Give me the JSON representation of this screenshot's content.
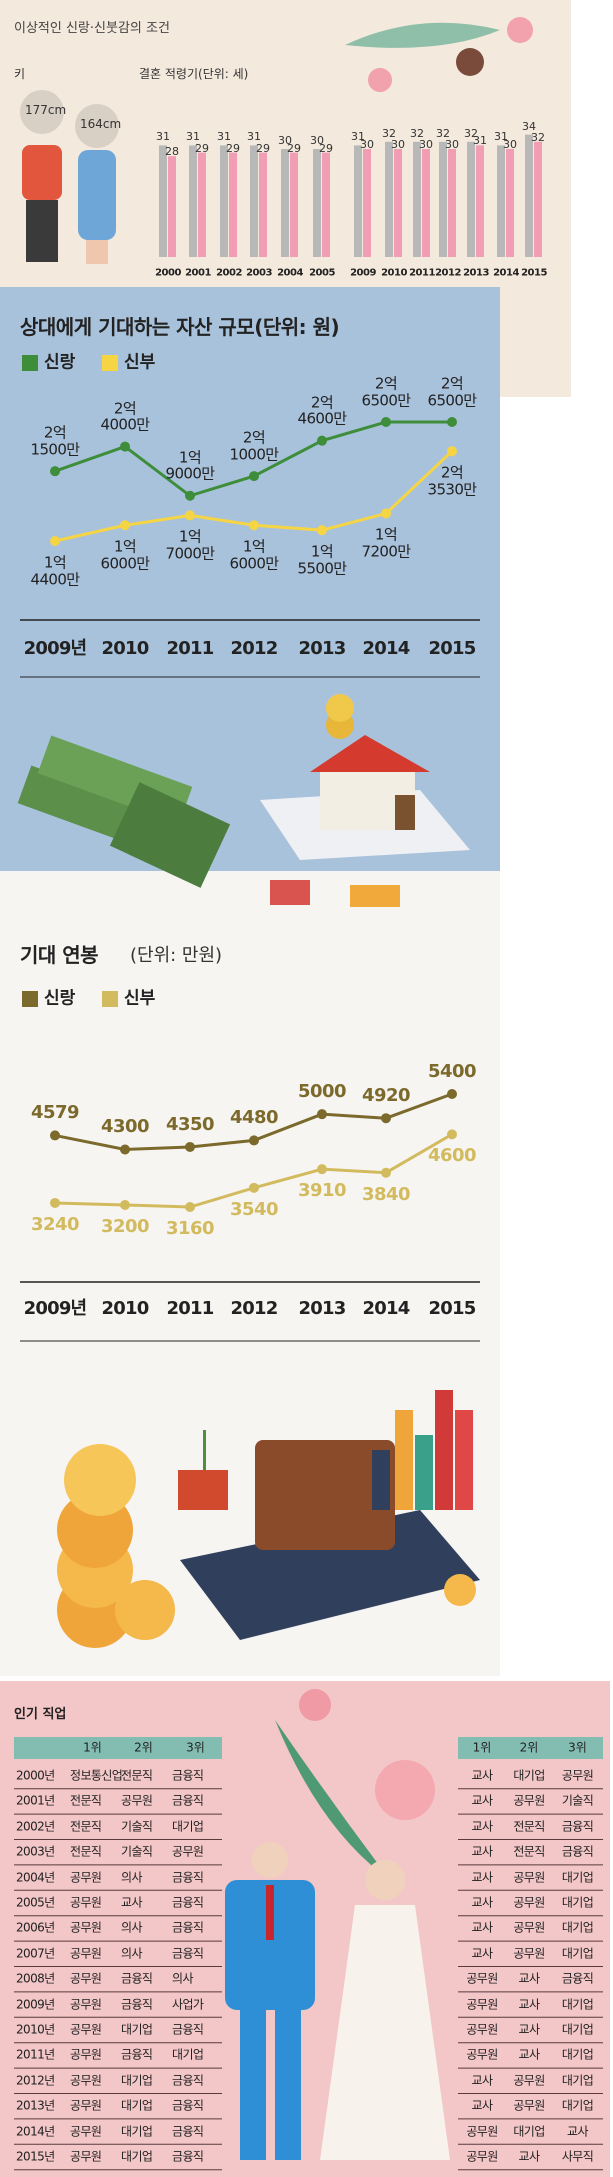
{
  "header": {
    "title": "이상적인 신랑·신붓감의 조건",
    "height_label": "키",
    "heights": [
      "177cm",
      "164cm"
    ]
  },
  "chart_data": [
    {
      "type": "bar",
      "title": "결혼 적령기(단위: 세)",
      "categories": [
        "2000",
        "2001",
        "2002",
        "2003",
        "2004",
        "2005",
        "2009",
        "2010",
        "2011",
        "2012",
        "2013",
        "2014",
        "2015"
      ],
      "series": [
        {
          "color": "#b8b8b8",
          "values": [
            31,
            31,
            31,
            31,
            30,
            30,
            31,
            32,
            32,
            32,
            32,
            31,
            34
          ]
        },
        {
          "color": "#f19db3",
          "values": [
            28,
            29,
            29,
            29,
            29,
            29,
            30,
            30,
            30,
            30,
            31,
            30,
            32
          ]
        }
      ]
    },
    {
      "type": "line",
      "title": "상대에게 기대하는 자산 규모(단위: 원)",
      "categories": [
        "2009년",
        "2010",
        "2011",
        "2012",
        "2013",
        "2014",
        "2015"
      ],
      "series": [
        {
          "name": "신랑",
          "color": "#3d8d3a",
          "values": [
            215000000,
            240000000,
            190000000,
            210000000,
            246000000,
            265000000,
            265000000
          ],
          "value_labels": [
            "2억\n1500만",
            "2억\n4000만",
            "1억\n9000만",
            "2억\n1000만",
            "2억\n4600만",
            "2억\n6500만",
            "2억\n6500만"
          ]
        },
        {
          "name": "신부",
          "color": "#f6d544",
          "values": [
            144000000,
            160000000,
            170000000,
            160000000,
            155000000,
            172000000,
            235300000
          ],
          "value_labels": [
            "1억\n4400만",
            "1억\n6000만",
            "1억\n7000만",
            "1억\n6000만",
            "1억\n5500만",
            "1억\n7200만",
            "2억\n3530만"
          ]
        }
      ]
    },
    {
      "type": "line",
      "title": "기대 연봉",
      "subtitle": "(단위: 만원)",
      "categories": [
        "2009년",
        "2010",
        "2011",
        "2012",
        "2013",
        "2014",
        "2015"
      ],
      "series": [
        {
          "name": "신랑",
          "color": "#7b6a2c",
          "values": [
            4579,
            4300,
            4350,
            4480,
            5000,
            4920,
            5400
          ]
        },
        {
          "name": "신부",
          "color": "#d2bb5e",
          "values": [
            3240,
            3200,
            3160,
            3540,
            3910,
            3840,
            4600
          ]
        }
      ]
    }
  ],
  "table": {
    "title": "인기 직업",
    "left_header": [
      "1위",
      "2위",
      "3위"
    ],
    "right_header": [
      "1위",
      "2위",
      "3위"
    ],
    "rows": [
      [
        "2000년",
        "정보통신업",
        "전문직",
        "금융직",
        "교사",
        "대기업",
        "공무원"
      ],
      [
        "2001년",
        "전문직",
        "공무원",
        "금융직",
        "교사",
        "공무원",
        "기술직"
      ],
      [
        "2002년",
        "전문직",
        "기술직",
        "대기업",
        "교사",
        "전문직",
        "금융직"
      ],
      [
        "2003년",
        "전문직",
        "기술직",
        "공무원",
        "교사",
        "전문직",
        "금융직"
      ],
      [
        "2004년",
        "공무원",
        "의사",
        "금융직",
        "교사",
        "공무원",
        "대기업"
      ],
      [
        "2005년",
        "공무원",
        "교사",
        "금융직",
        "교사",
        "공무원",
        "대기업"
      ],
      [
        "2006년",
        "공무원",
        "의사",
        "금융직",
        "교사",
        "공무원",
        "대기업"
      ],
      [
        "2007년",
        "공무원",
        "의사",
        "금융직",
        "교사",
        "공무원",
        "대기업"
      ],
      [
        "2008년",
        "공무원",
        "금융직",
        "의사",
        "공무원",
        "교사",
        "금융직"
      ],
      [
        "2009년",
        "공무원",
        "금융직",
        "사업가",
        "공무원",
        "교사",
        "대기업"
      ],
      [
        "2010년",
        "공무원",
        "대기업",
        "금융직",
        "공무원",
        "교사",
        "대기업"
      ],
      [
        "2011년",
        "공무원",
        "금융직",
        "대기업",
        "공무원",
        "교사",
        "대기업"
      ],
      [
        "2012년",
        "공무원",
        "대기업",
        "금융직",
        "교사",
        "공무원",
        "대기업"
      ],
      [
        "2013년",
        "공무원",
        "대기업",
        "금융직",
        "교사",
        "공무원",
        "대기업"
      ],
      [
        "2014년",
        "공무원",
        "대기업",
        "금융직",
        "공무원",
        "대기업",
        "교사"
      ],
      [
        "2015년",
        "공무원",
        "대기업",
        "금융직",
        "공무원",
        "교사",
        "사무직"
      ]
    ]
  }
}
